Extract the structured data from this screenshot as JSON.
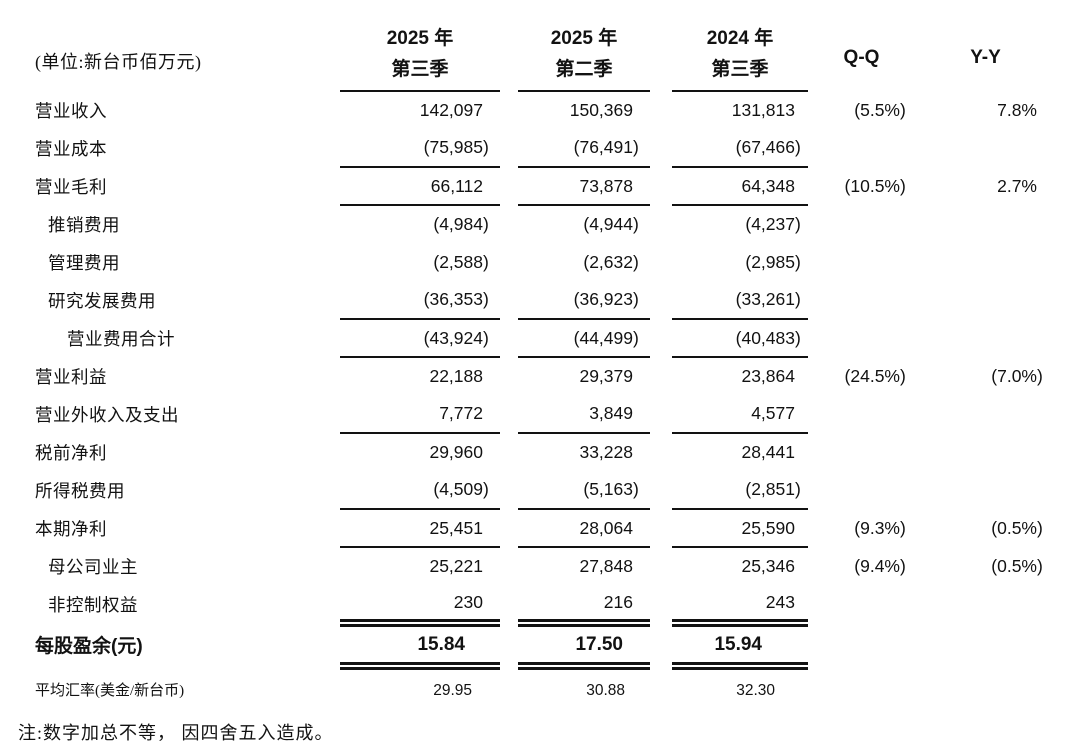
{
  "page": {
    "unit_label": "(单位:新台币佰万元)",
    "note": "注:数字加总不等， 因四舍五入造成。"
  },
  "header": {
    "period_columns": [
      {
        "line1": "2025 年",
        "line2": "第三季"
      },
      {
        "line1": "2025 年",
        "line2": "第二季"
      },
      {
        "line1": "2024 年",
        "line2": "第三季"
      }
    ],
    "qq_label": "Q-Q",
    "yy_label": "Y-Y"
  },
  "rows": [
    {
      "label": "营业收入",
      "indent": 0,
      "values": [
        "142,097",
        "150,369",
        "131,813"
      ],
      "qq": "(5.5%)",
      "yy": "7.8%",
      "rule": "none",
      "style": "normal"
    },
    {
      "label": "营业成本",
      "indent": 0,
      "values": [
        "(75,985)",
        "(76,491)",
        "(67,466)"
      ],
      "qq": "",
      "yy": "",
      "rule": "single",
      "style": "normal"
    },
    {
      "label": "营业毛利",
      "indent": 0,
      "values": [
        "66,112",
        "73,878",
        "64,348"
      ],
      "qq": "(10.5%)",
      "yy": "2.7%",
      "rule": "single",
      "style": "normal"
    },
    {
      "label": "推销费用",
      "indent": 1,
      "values": [
        "(4,984)",
        "(4,944)",
        "(4,237)"
      ],
      "qq": "",
      "yy": "",
      "rule": "none",
      "style": "normal"
    },
    {
      "label": "管理费用",
      "indent": 1,
      "values": [
        "(2,588)",
        "(2,632)",
        "(2,985)"
      ],
      "qq": "",
      "yy": "",
      "rule": "none",
      "style": "normal"
    },
    {
      "label": "研究发展费用",
      "indent": 1,
      "values": [
        "(36,353)",
        "(36,923)",
        "(33,261)"
      ],
      "qq": "",
      "yy": "",
      "rule": "single",
      "style": "normal"
    },
    {
      "label": "营业费用合计",
      "indent": 2,
      "values": [
        "(43,924)",
        "(44,499)",
        "(40,483)"
      ],
      "qq": "",
      "yy": "",
      "rule": "single",
      "style": "normal"
    },
    {
      "label": "营业利益",
      "indent": 0,
      "values": [
        "22,188",
        "29,379",
        "23,864"
      ],
      "qq": "(24.5%)",
      "yy": "(7.0%)",
      "rule": "none",
      "style": "normal"
    },
    {
      "label": "营业外收入及支出",
      "indent": 0,
      "values": [
        "7,772",
        "3,849",
        "4,577"
      ],
      "qq": "",
      "yy": "",
      "rule": "single",
      "style": "normal"
    },
    {
      "label": "税前净利",
      "indent": 0,
      "values": [
        "29,960",
        "33,228",
        "28,441"
      ],
      "qq": "",
      "yy": "",
      "rule": "none",
      "style": "normal"
    },
    {
      "label": "所得税费用",
      "indent": 0,
      "values": [
        "(4,509)",
        "(5,163)",
        "(2,851)"
      ],
      "qq": "",
      "yy": "",
      "rule": "single",
      "style": "normal"
    },
    {
      "label": "本期净利",
      "indent": 0,
      "values": [
        "25,451",
        "28,064",
        "25,590"
      ],
      "qq": "(9.3%)",
      "yy": "(0.5%)",
      "rule": "single",
      "style": "normal"
    },
    {
      "label": "母公司业主",
      "indent": 1,
      "values": [
        "25,221",
        "27,848",
        "25,346"
      ],
      "qq": "(9.4%)",
      "yy": "(0.5%)",
      "rule": "none",
      "style": "normal"
    },
    {
      "label": "非控制权益",
      "indent": 1,
      "values": [
        "230",
        "216",
        "243"
      ],
      "qq": "",
      "yy": "",
      "rule": "double",
      "style": "normal"
    },
    {
      "label": "每股盈余(元)",
      "indent": 0,
      "values": [
        "15.84",
        "17.50",
        "15.94"
      ],
      "qq": "",
      "yy": "",
      "rule": "double",
      "style": "eps"
    },
    {
      "label": "平均汇率(美金/新台币)",
      "indent": 0,
      "values": [
        "29.95",
        "30.88",
        "32.30"
      ],
      "qq": "",
      "yy": "",
      "rule": "none",
      "style": "fx"
    }
  ]
}
